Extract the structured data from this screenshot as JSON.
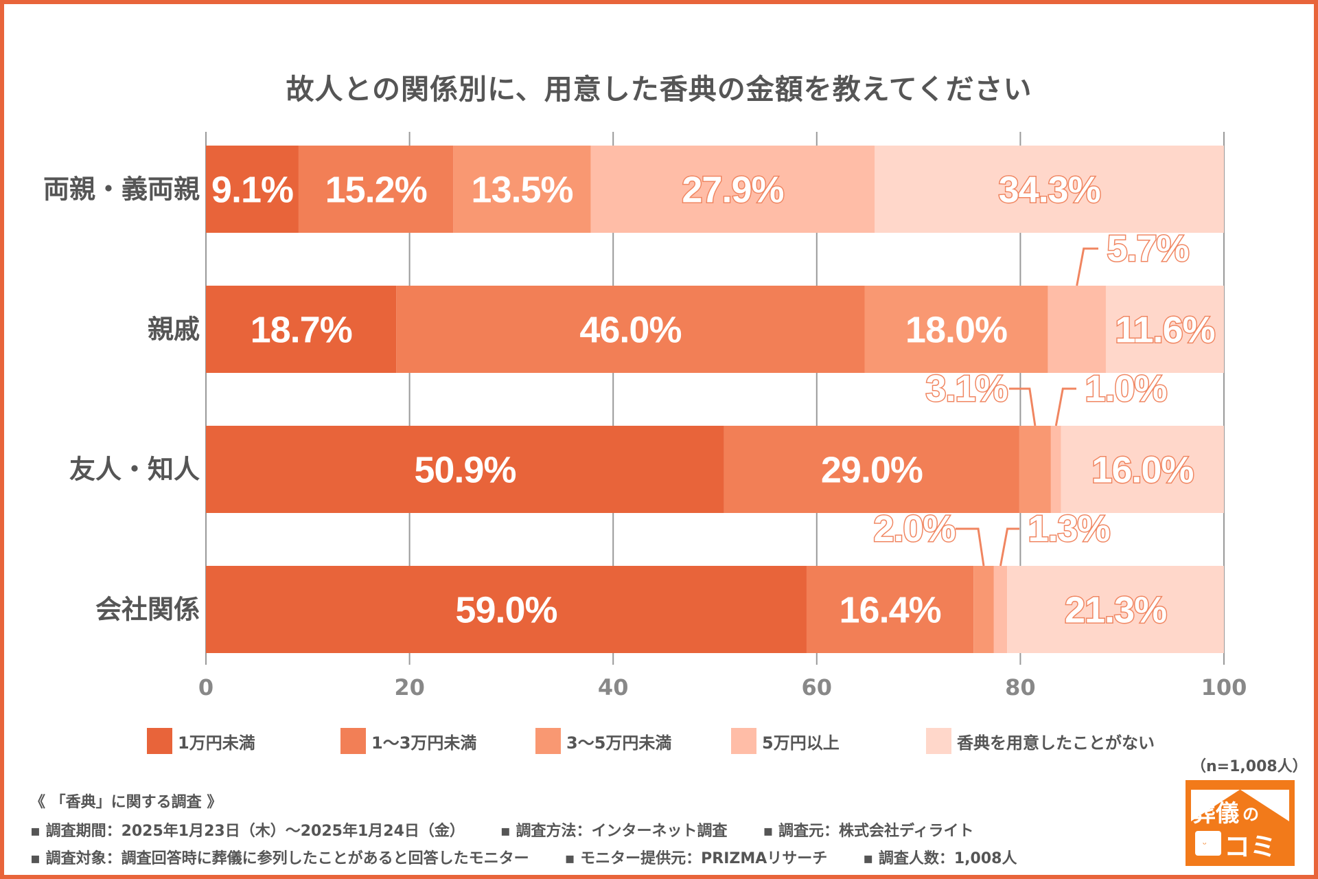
{
  "title": "故人との関係別に、用意した香典の金額を教えてください",
  "chart_data": {
    "type": "bar",
    "orientation": "horizontal",
    "stacked": true,
    "title": "故人との関係別に、用意した香典の金額を教えてください",
    "categories": [
      "両親・義両親",
      "親戚",
      "友人・知人",
      "会社関係"
    ],
    "series": [
      {
        "name": "1万円未満",
        "color": "#E8643A",
        "values": [
          9.1,
          18.7,
          50.9,
          59.0
        ]
      },
      {
        "name": "1〜3万円未満",
        "color": "#F27F56",
        "values": [
          15.2,
          46.0,
          29.0,
          16.4
        ]
      },
      {
        "name": "3〜5万円未満",
        "color": "#F99872",
        "values": [
          13.5,
          18.0,
          3.1,
          2.0
        ]
      },
      {
        "name": "5万円以上",
        "color": "#FFBDA7",
        "values": [
          27.9,
          5.7,
          1.0,
          1.3
        ]
      },
      {
        "name": "香典を用意したことがない",
        "color": "#FFD7CA",
        "values": [
          34.3,
          11.6,
          16.0,
          21.3
        ]
      }
    ],
    "xlim": [
      0,
      100
    ],
    "xticks": [
      "0",
      "20",
      "40",
      "60",
      "80",
      "100"
    ],
    "grid": true,
    "legend": "bottom",
    "unit": "%"
  },
  "sample_size": "（n=1,008人）",
  "footer": {
    "heading": "《 「香典」に関する調査 》",
    "line1": [
      "▪ 調査期間：2025年1月23日（木）〜2025年1月24日（金）",
      "▪ 調査方法：インターネット調査",
      "▪ 調査元：株式会社ディライト"
    ],
    "line2": [
      "▪ 調査対象：調査回答時に葬儀に参列したことがあると回答したモニター",
      "▪ モニター提供元：PRIZMAリサーチ",
      "▪ 調査人数：1,008人"
    ]
  },
  "logo": {
    "text1": "葬儀",
    "text2": "の",
    "text3": "コミ",
    "color": "#F27A1A"
  }
}
